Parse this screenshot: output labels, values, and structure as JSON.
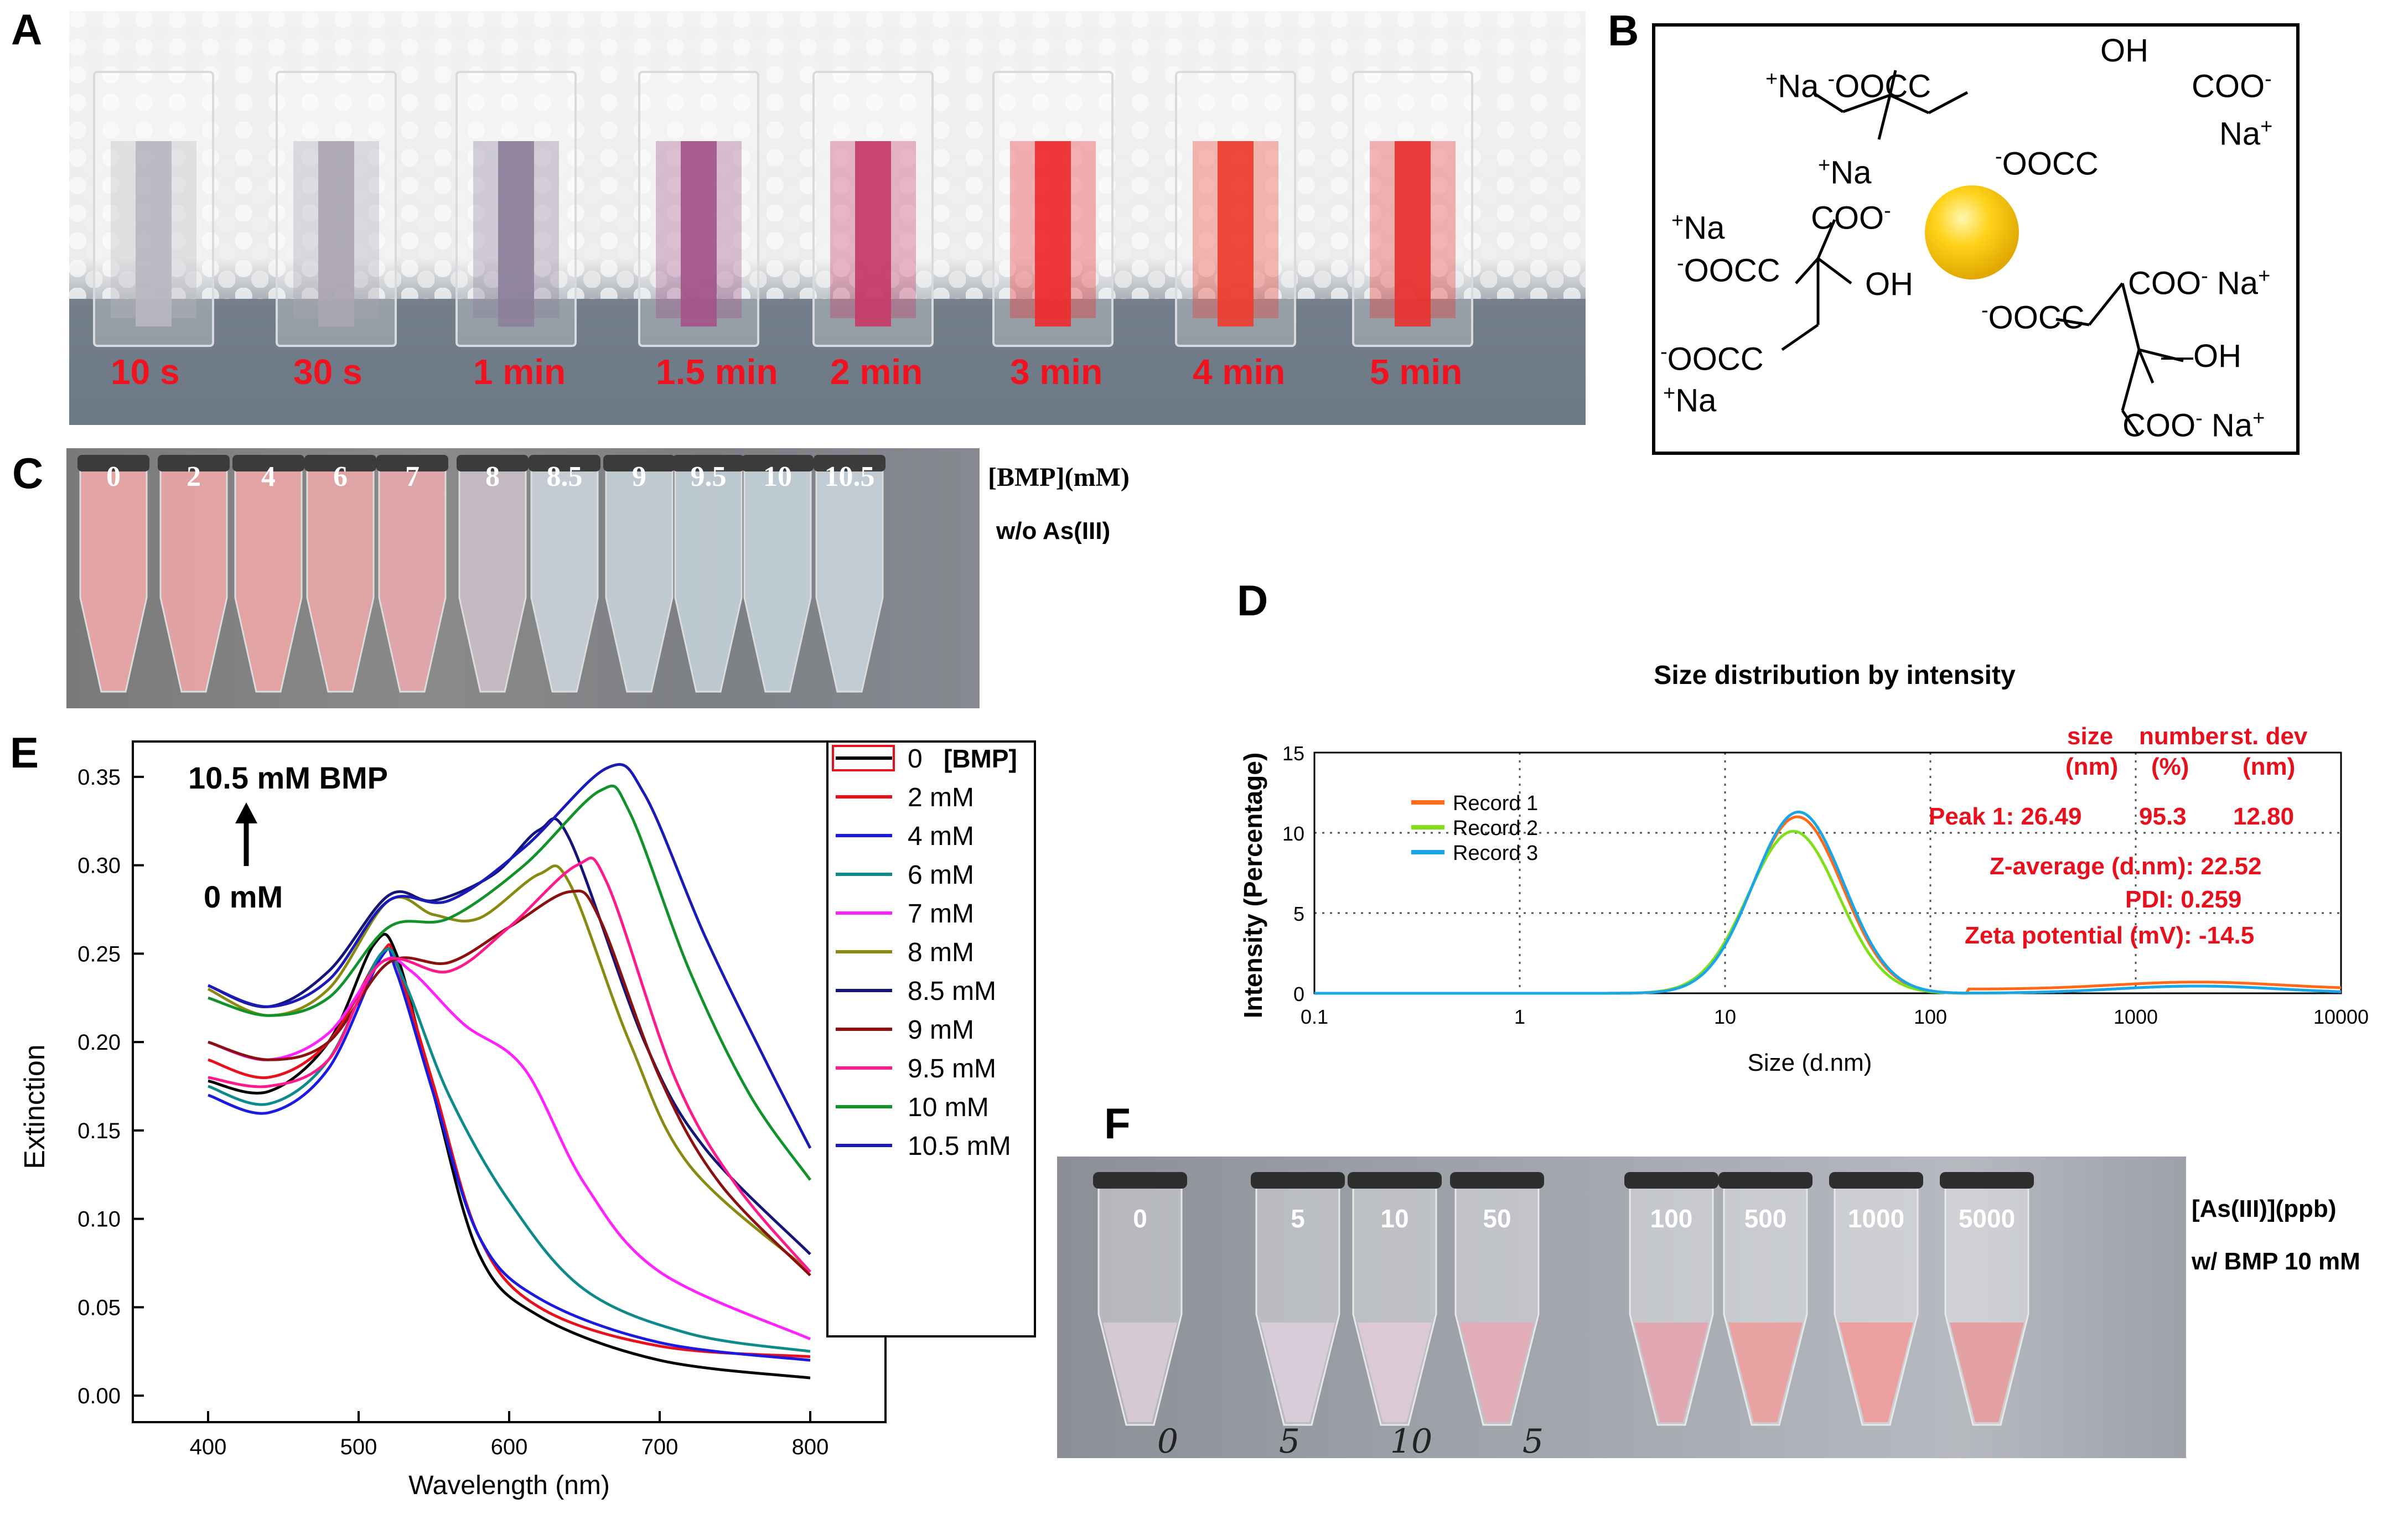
{
  "panels": {
    "a": {
      "letter": "A",
      "times": [
        "10 s",
        "30 s",
        "1 min",
        "1.5 min",
        "2 min",
        "3 min",
        "4 min",
        "5 min"
      ],
      "liquid_colors": [
        "#b9b6c0",
        "#aba6b3",
        "#8c7f9a",
        "#a4528a",
        "#c53a67",
        "#ee2a2c",
        "#ee3b2e",
        "#e8302e"
      ]
    },
    "b": {
      "letter": "B",
      "structure": {
        "top_left": "Na",
        "top_cooc": "OOC",
        "top_oh": "OH",
        "top_coo": "COO",
        "top_na": "Na",
        "top_mid": "OOC",
        "left_na": "Na",
        "left_coo": "COO",
        "left_na2": "Na",
        "left_ooc": "OOC",
        "left_oh": "OH",
        "left_ooc2": "OOC",
        "left_na3": "Na",
        "right_coo": "COO",
        "right_na": "Na",
        "right_ooc": "OOC",
        "right_oh": "OH",
        "right_coo2": "COO",
        "right_na2": "Na"
      }
    },
    "c": {
      "letter": "C",
      "labels": [
        "0",
        "2",
        "4",
        "6",
        "7",
        "8",
        "8.5",
        "9",
        "9.5",
        "10",
        "10.5"
      ],
      "colors": [
        "#e8a6a6",
        "#e6a4a4",
        "#e7a4a4",
        "#e6a5a5",
        "#e3a8ad",
        "#c8bcc4",
        "#c8cfd6",
        "#c2ccd4",
        "#c0cbd4",
        "#c2cdd6",
        "#c4cfd8"
      ],
      "unit_label": "[BMP](mM)",
      "sub_label": "w/o As(III)"
    },
    "d": {
      "letter": "D",
      "chart_data": {
        "type": "line",
        "title": "Size distribution by intensity",
        "xlabel": "Size (d.nm)",
        "ylabel": "Intensity (Percentage)",
        "xscale": "log",
        "xlim": [
          0.1,
          10000
        ],
        "ylim": [
          0,
          15
        ],
        "xticks": [
          "0.1",
          "1",
          "10",
          "100",
          "1000",
          "10000"
        ],
        "yticks": [
          "0",
          "5",
          "10",
          "15"
        ],
        "legend": [
          "Record 1",
          "Record 2",
          "Record 3"
        ],
        "series": [
          {
            "name": "Record 1",
            "color": "#ff6a1a",
            "peak": 11.0,
            "center": 22.5
          },
          {
            "name": "Record 2",
            "color": "#7fe01a",
            "peak": 10.1,
            "center": 21.5
          },
          {
            "name": "Record 3",
            "color": "#1aa6e6",
            "peak": 11.3,
            "center": 22.8
          }
        ],
        "annotations": {
          "header1": "size",
          "header2": "number",
          "header3": "st. dev",
          "header1b": "(nm)",
          "header2b": "(%)",
          "header3b": "(nm)",
          "peak_label": "Peak 1: 26.49",
          "peak_number": "95.3",
          "peak_stdev": "12.80",
          "zavg": "Z-average (d.nm): 22.52",
          "pdi": "PDI: 0.259",
          "zeta": "Zeta potential (mV): -14.5"
        }
      }
    },
    "e": {
      "letter": "E",
      "chart_data": {
        "type": "line",
        "xlabel": "Wavelength (nm)",
        "ylabel": "Extinction",
        "xlim": [
          350,
          850
        ],
        "ylim": [
          -0.015,
          0.37
        ],
        "xticks": [
          "400",
          "500",
          "600",
          "700",
          "800"
        ],
        "yticks": [
          "0.00",
          "0.05",
          "0.10",
          "0.15",
          "0.20",
          "0.25",
          "0.30",
          "0.35"
        ],
        "arrow_top": "10.5 mM  BMP",
        "arrow_bottom": "0 mM",
        "legend_header": "[BMP]",
        "series": [
          {
            "name": "0",
            "color": "#000000",
            "points": [
              [
                400,
                0.178
              ],
              [
                440,
                0.172
              ],
              [
                480,
                0.2
              ],
              [
                510,
                0.255
              ],
              [
                525,
                0.25
              ],
              [
                550,
                0.17
              ],
              [
                580,
                0.08
              ],
              [
                620,
                0.045
              ],
              [
                700,
                0.02
              ],
              [
                800,
                0.01
              ]
            ]
          },
          {
            "name": "2 mM",
            "color": "#e8101c",
            "points": [
              [
                400,
                0.19
              ],
              [
                440,
                0.18
              ],
              [
                480,
                0.2
              ],
              [
                515,
                0.25
              ],
              [
                525,
                0.245
              ],
              [
                550,
                0.175
              ],
              [
                580,
                0.09
              ],
              [
                620,
                0.05
              ],
              [
                700,
                0.028
              ],
              [
                800,
                0.022
              ]
            ]
          },
          {
            "name": "4 mM",
            "color": "#1a1ae0",
            "points": [
              [
                400,
                0.17
              ],
              [
                440,
                0.16
              ],
              [
                480,
                0.185
              ],
              [
                515,
                0.248
              ],
              [
                525,
                0.24
              ],
              [
                550,
                0.17
              ],
              [
                580,
                0.09
              ],
              [
                620,
                0.055
              ],
              [
                700,
                0.03
              ],
              [
                800,
                0.02
              ]
            ]
          },
          {
            "name": "6 mM",
            "color": "#0f8a8a",
            "points": [
              [
                400,
                0.175
              ],
              [
                440,
                0.165
              ],
              [
                480,
                0.19
              ],
              [
                515,
                0.25
              ],
              [
                530,
                0.235
              ],
              [
                560,
                0.17
              ],
              [
                600,
                0.11
              ],
              [
                650,
                0.06
              ],
              [
                720,
                0.035
              ],
              [
                800,
                0.025
              ]
            ]
          },
          {
            "name": "7 mM",
            "color": "#ff22ff",
            "points": [
              [
                400,
                0.2
              ],
              [
                440,
                0.19
              ],
              [
                480,
                0.205
              ],
              [
                515,
                0.245
              ],
              [
                535,
                0.24
              ],
              [
                570,
                0.21
              ],
              [
                610,
                0.185
              ],
              [
                650,
                0.12
              ],
              [
                700,
                0.07
              ],
              [
                800,
                0.032
              ]
            ]
          },
          {
            "name": "8 mM",
            "color": "#8a8a12",
            "points": [
              [
                400,
                0.23
              ],
              [
                440,
                0.215
              ],
              [
                480,
                0.23
              ],
              [
                520,
                0.28
              ],
              [
                550,
                0.272
              ],
              [
                580,
                0.27
              ],
              [
                620,
                0.295
              ],
              [
                640,
                0.29
              ],
              [
                680,
                0.2
              ],
              [
                720,
                0.13
              ],
              [
                800,
                0.07
              ]
            ]
          },
          {
            "name": "8.5 mM",
            "color": "#14147a",
            "points": [
              [
                400,
                0.232
              ],
              [
                440,
                0.22
              ],
              [
                480,
                0.24
              ],
              [
                520,
                0.283
              ],
              [
                550,
                0.28
              ],
              [
                590,
                0.295
              ],
              [
                620,
                0.32
              ],
              [
                640,
                0.315
              ],
              [
                690,
                0.2
              ],
              [
                730,
                0.14
              ],
              [
                800,
                0.08
              ]
            ]
          },
          {
            "name": "9 mM",
            "color": "#8c1010",
            "points": [
              [
                400,
                0.2
              ],
              [
                440,
                0.19
              ],
              [
                480,
                0.2
              ],
              [
                520,
                0.245
              ],
              [
                560,
                0.245
              ],
              [
                600,
                0.265
              ],
              [
                640,
                0.285
              ],
              [
                660,
                0.27
              ],
              [
                700,
                0.18
              ],
              [
                740,
                0.12
              ],
              [
                800,
                0.068
              ]
            ]
          },
          {
            "name": "9.5 mM",
            "color": "#ff1a8c",
            "points": [
              [
                400,
                0.18
              ],
              [
                440,
                0.175
              ],
              [
                480,
                0.19
              ],
              [
                515,
                0.245
              ],
              [
                560,
                0.24
              ],
              [
                600,
                0.265
              ],
              [
                645,
                0.3
              ],
              [
                665,
                0.29
              ],
              [
                710,
                0.18
              ],
              [
                750,
                0.12
              ],
              [
                800,
                0.07
              ]
            ]
          },
          {
            "name": "10 mM",
            "color": "#12922a",
            "points": [
              [
                400,
                0.225
              ],
              [
                440,
                0.215
              ],
              [
                480,
                0.225
              ],
              [
                520,
                0.265
              ],
              [
                560,
                0.27
              ],
              [
                610,
                0.3
              ],
              [
                660,
                0.342
              ],
              [
                680,
                0.33
              ],
              [
                720,
                0.24
              ],
              [
                760,
                0.17
              ],
              [
                800,
                0.122
              ]
            ]
          },
          {
            "name": "10.5 mM",
            "color": "#1a1ab8",
            "points": [
              [
                400,
                0.232
              ],
              [
                440,
                0.22
              ],
              [
                480,
                0.235
              ],
              [
                520,
                0.28
              ],
              [
                560,
                0.28
              ],
              [
                610,
                0.31
              ],
              [
                665,
                0.355
              ],
              [
                690,
                0.34
              ],
              [
                730,
                0.26
              ],
              [
                770,
                0.19
              ],
              [
                800,
                0.14
              ]
            ]
          }
        ]
      }
    },
    "f": {
      "letter": "F",
      "labels": [
        "0",
        "5",
        "10",
        "50",
        "100",
        "500",
        "1000",
        "5000"
      ],
      "colors": [
        "#d6c9d2",
        "#d7ccd7",
        "#dbc9d4",
        "#e0adb8",
        "#e1a8b3",
        "#e9a2a2",
        "#eb9f9f",
        "#e3a1a4"
      ],
      "unit_label": "[As(III)](ppb)",
      "sub_label": "w/ BMP 10 mM",
      "handwriting": [
        "0",
        "5",
        "10",
        "5"
      ]
    }
  }
}
